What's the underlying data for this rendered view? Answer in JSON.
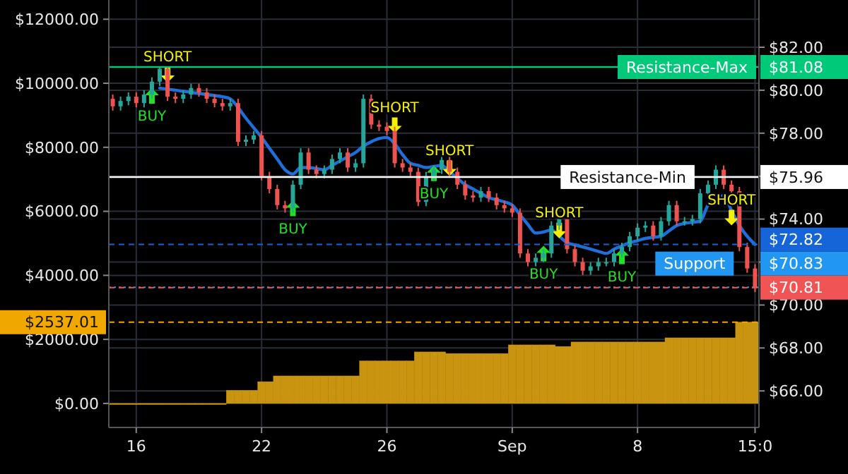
{
  "chart_data": {
    "type": "candlestick",
    "categories": [
      null,
      null,
      null,
      "16",
      null,
      null,
      null,
      null,
      null,
      null,
      null,
      null,
      null,
      null,
      null,
      null,
      null,
      null,
      null,
      "22",
      null,
      null,
      null,
      null,
      null,
      null,
      null,
      null,
      null,
      null,
      null,
      null,
      null,
      null,
      null,
      "26",
      null,
      null,
      null,
      null,
      null,
      null,
      null,
      null,
      null,
      null,
      null,
      null,
      null,
      null,
      null,
      "Sep",
      null,
      null,
      null,
      null,
      null,
      null,
      null,
      null,
      null,
      null,
      null,
      null,
      null,
      null,
      null,
      "8",
      null,
      null,
      null,
      null,
      null,
      null,
      null,
      null,
      null,
      null,
      null,
      null,
      null,
      null,
      "15:0"
    ],
    "ylim": [
      -750,
      12600
    ],
    "yticks": [
      {
        "value": 0,
        "label": "$0.00"
      },
      {
        "value": 2000,
        "label": "$2000.00"
      },
      {
        "value": 4000,
        "label": "$4000.00"
      },
      {
        "value": 6000,
        "label": "$6000.00"
      },
      {
        "value": 8000,
        "label": "$8000.00"
      },
      {
        "value": 10000,
        "label": "$10000.00"
      },
      {
        "value": 12000,
        "label": "$12000.00"
      }
    ],
    "y2lim": [
      64.3,
      84.2
    ],
    "y2ticks": [
      {
        "value": 66,
        "label": "$66.00"
      },
      {
        "value": 68,
        "label": "$68.00"
      },
      {
        "value": 70,
        "label": "$70.00"
      },
      {
        "value": 72,
        "label": null
      },
      {
        "value": 74,
        "label": "$74.00"
      },
      {
        "value": 76,
        "label": null
      },
      {
        "value": 78,
        "label": "$78.00"
      },
      {
        "value": 80,
        "label": "$80.00"
      },
      {
        "value": 82,
        "label": "$82.00"
      }
    ],
    "grid": true,
    "series": [
      {
        "type": "bar",
        "axis": "y",
        "color": "#c99410",
        "values": [
          0,
          0,
          0,
          0,
          0,
          0,
          0,
          0,
          0,
          0,
          0,
          0,
          0,
          0,
          0,
          410,
          410,
          410,
          410,
          680,
          680,
          860,
          860,
          860,
          860,
          860,
          860,
          860,
          860,
          860,
          860,
          860,
          1330,
          1330,
          1330,
          1330,
          1330,
          1330,
          1330,
          1610,
          1610,
          1610,
          1610,
          1560,
          1560,
          1560,
          1560,
          1560,
          1560,
          1560,
          1560,
          1830,
          1830,
          1830,
          1830,
          1830,
          1830,
          1780,
          1780,
          1920,
          1920,
          1920,
          1920,
          1920,
          1920,
          1920,
          1920,
          1920,
          1920,
          1920,
          1920,
          2050,
          2050,
          2050,
          2050,
          2050,
          2050,
          2050,
          2050,
          2050,
          2540,
          2540,
          2540
        ]
      },
      {
        "axis": "y2",
        "ohlc": [
          [
            79.6,
            79.8,
            79.05,
            79.25
          ],
          [
            79.25,
            79.7,
            79.05,
            79.5
          ],
          [
            79.5,
            79.9,
            79.3,
            79.7
          ],
          [
            79.7,
            79.9,
            79.2,
            79.4
          ],
          [
            79.4,
            80.0,
            79.2,
            79.8
          ],
          [
            79.8,
            80.6,
            79.6,
            80.4
          ],
          [
            80.4,
            81.08,
            80.2,
            81.0
          ],
          [
            81.0,
            81.08,
            79.5,
            79.7
          ],
          [
            79.7,
            79.9,
            79.4,
            79.6
          ],
          [
            79.6,
            80.0,
            79.4,
            79.8
          ],
          [
            79.8,
            80.3,
            79.6,
            80.1
          ],
          [
            80.1,
            80.3,
            79.7,
            79.9
          ],
          [
            79.9,
            80.1,
            79.4,
            79.6
          ],
          [
            79.6,
            79.8,
            79.2,
            79.4
          ],
          [
            79.4,
            79.6,
            79.05,
            79.25
          ],
          [
            79.25,
            79.6,
            79.05,
            79.4
          ],
          [
            79.4,
            79.6,
            77.4,
            77.6
          ],
          [
            77.6,
            77.9,
            77.4,
            77.7
          ],
          [
            77.7,
            78.1,
            77.5,
            77.9
          ],
          [
            77.9,
            78.1,
            75.8,
            76.0
          ],
          [
            76.0,
            76.2,
            75.2,
            75.4
          ],
          [
            75.4,
            75.6,
            74.45,
            74.65
          ],
          [
            74.65,
            74.85,
            74.3,
            74.5
          ],
          [
            74.5,
            75.8,
            74.3,
            75.6
          ],
          [
            75.6,
            77.3,
            75.4,
            77.1
          ],
          [
            77.1,
            77.3,
            76.1,
            76.3
          ],
          [
            76.3,
            76.5,
            75.9,
            76.1
          ],
          [
            76.1,
            76.5,
            75.9,
            76.3
          ],
          [
            76.3,
            77.0,
            76.1,
            76.8
          ],
          [
            76.8,
            77.3,
            76.6,
            77.1
          ],
          [
            77.1,
            77.3,
            76.2,
            76.4
          ],
          [
            76.4,
            76.8,
            76.2,
            76.6
          ],
          [
            76.6,
            79.8,
            76.4,
            79.6
          ],
          [
            79.6,
            79.8,
            78.2,
            78.4
          ],
          [
            78.4,
            78.6,
            78.1,
            78.3
          ],
          [
            78.3,
            78.5,
            77.9,
            78.1
          ],
          [
            78.1,
            78.3,
            76.4,
            76.6
          ],
          [
            76.6,
            76.8,
            76.2,
            76.4
          ],
          [
            76.4,
            76.6,
            76.0,
            76.2
          ],
          [
            76.2,
            76.4,
            74.6,
            74.8
          ],
          [
            74.8,
            76.2,
            74.6,
            76.0
          ],
          [
            76.0,
            76.5,
            75.8,
            76.3
          ],
          [
            76.3,
            76.95,
            76.1,
            76.75
          ],
          [
            76.75,
            76.95,
            76.0,
            76.2
          ],
          [
            76.2,
            76.4,
            75.4,
            75.6
          ],
          [
            75.6,
            75.8,
            74.9,
            75.1
          ],
          [
            75.1,
            75.3,
            74.8,
            75.0
          ],
          [
            75.0,
            75.5,
            74.8,
            75.3
          ],
          [
            75.3,
            75.5,
            74.8,
            75.0
          ],
          [
            75.0,
            75.2,
            74.45,
            74.65
          ],
          [
            74.65,
            74.85,
            74.3,
            74.5
          ],
          [
            74.5,
            74.7,
            74.1,
            74.3
          ],
          [
            74.3,
            74.5,
            72.2,
            72.4
          ],
          [
            72.4,
            72.6,
            71.8,
            72.0
          ],
          [
            72.0,
            72.4,
            71.8,
            72.2
          ],
          [
            72.2,
            72.6,
            72.0,
            72.4
          ],
          [
            72.4,
            73.9,
            72.2,
            73.7
          ],
          [
            73.7,
            74.2,
            73.5,
            74.0
          ],
          [
            74.0,
            74.2,
            72.4,
            72.6
          ],
          [
            72.6,
            72.8,
            71.8,
            72.0
          ],
          [
            72.0,
            72.2,
            71.4,
            71.6
          ],
          [
            71.6,
            72.0,
            71.4,
            71.8
          ],
          [
            71.8,
            72.2,
            71.6,
            72.0
          ],
          [
            72.0,
            72.2,
            71.8,
            72.0
          ],
          [
            72.0,
            72.6,
            71.8,
            72.4
          ],
          [
            72.4,
            72.9,
            72.2,
            72.7
          ],
          [
            72.7,
            73.4,
            72.5,
            73.2
          ],
          [
            73.2,
            73.8,
            73.0,
            73.6
          ],
          [
            73.6,
            73.9,
            73.4,
            73.7
          ],
          [
            73.7,
            73.9,
            73.0,
            73.2
          ],
          [
            73.2,
            74.1,
            73.0,
            73.9
          ],
          [
            73.9,
            74.85,
            73.7,
            74.65
          ],
          [
            74.65,
            74.85,
            73.7,
            73.9
          ],
          [
            73.9,
            74.1,
            73.7,
            73.9
          ],
          [
            73.9,
            74.2,
            73.7,
            74.0
          ],
          [
            74.0,
            75.4,
            73.8,
            75.2
          ],
          [
            75.2,
            75.8,
            75.0,
            75.6
          ],
          [
            75.6,
            76.5,
            75.4,
            76.3
          ],
          [
            76.3,
            76.5,
            75.4,
            75.6
          ],
          [
            75.6,
            75.8,
            75.1,
            75.3
          ],
          [
            75.3,
            75.5,
            72.5,
            72.7
          ],
          [
            72.7,
            72.9,
            71.5,
            71.7
          ],
          [
            71.7,
            71.9,
            70.6,
            70.81
          ]
        ]
      },
      {
        "type": "line",
        "axis": "y2",
        "color": "#1e6fd9",
        "values": [
          null,
          null,
          null,
          null,
          null,
          null,
          80.1,
          80.05,
          80.0,
          79.95,
          79.9,
          79.85,
          79.8,
          79.75,
          79.7,
          79.6,
          79.2,
          78.7,
          78.25,
          77.8,
          77.3,
          76.8,
          76.3,
          76.1,
          76.4,
          76.4,
          76.35,
          76.3,
          76.5,
          76.7,
          76.9,
          77.1,
          77.4,
          77.6,
          77.75,
          77.8,
          77.5,
          77.0,
          76.6,
          76.5,
          76.4,
          76.45,
          76.5,
          76.2,
          75.9,
          75.6,
          75.4,
          75.2,
          75.0,
          74.9,
          74.8,
          74.65,
          74.2,
          73.75,
          73.35,
          73.4,
          73.5,
          73.2,
          72.9,
          72.8,
          72.7,
          72.6,
          72.5,
          72.4,
          72.6,
          72.75,
          72.9,
          73.0,
          73.1,
          73.15,
          73.2,
          73.45,
          73.7,
          73.8,
          73.85,
          73.9,
          74.65,
          74.9,
          75.1,
          74.4,
          73.7,
          73.2,
          72.82
        ]
      },
      {
        "type": "scatter",
        "axis": "y2",
        "color": "#22e022",
        "marker": "triangle",
        "values": [
          null,
          null,
          null,
          null,
          null,
          79.7,
          null,
          null,
          null,
          null,
          null,
          null,
          null,
          null,
          null,
          null,
          null,
          null,
          null,
          null,
          null,
          null,
          null,
          74.46,
          null,
          null,
          null,
          null,
          null,
          null,
          null,
          null,
          null,
          null,
          null,
          null,
          null,
          null,
          null,
          null,
          null,
          76.1,
          null,
          null,
          null,
          null,
          null,
          null,
          null,
          null,
          null,
          null,
          null,
          null,
          null,
          72.36,
          null,
          null,
          null,
          null,
          null,
          null,
          null,
          null,
          null,
          72.23,
          null,
          null,
          null,
          null,
          null,
          null,
          null,
          null,
          null,
          null,
          null,
          null,
          null,
          null,
          null,
          null,
          null
        ],
        "value_labels": [
          null,
          null,
          null,
          null,
          null,
          "BUY",
          null,
          null,
          null,
          null,
          null,
          null,
          null,
          null,
          null,
          null,
          null,
          null,
          null,
          null,
          null,
          null,
          null,
          "BUY",
          null,
          null,
          null,
          null,
          null,
          null,
          null,
          null,
          null,
          null,
          null,
          null,
          null,
          null,
          null,
          null,
          null,
          "BUY",
          null,
          null,
          null,
          null,
          null,
          null,
          null,
          null,
          null,
          null,
          null,
          null,
          null,
          "BUY",
          null,
          null,
          null,
          null,
          null,
          null,
          null,
          null,
          null,
          "BUY",
          null,
          null,
          null,
          null,
          null,
          null,
          null,
          null,
          null,
          null,
          null,
          null,
          null,
          null,
          null,
          null,
          null
        ]
      },
      {
        "type": "scatter",
        "axis": "y2",
        "color": "#f5f000",
        "marker": "triangle",
        "values": [
          null,
          null,
          null,
          null,
          null,
          null,
          null,
          80.75,
          null,
          null,
          null,
          null,
          null,
          null,
          null,
          null,
          null,
          null,
          null,
          null,
          null,
          null,
          null,
          null,
          null,
          null,
          null,
          null,
          null,
          null,
          null,
          null,
          null,
          null,
          null,
          null,
          78.4,
          null,
          null,
          null,
          null,
          null,
          null,
          76.4,
          null,
          null,
          null,
          null,
          null,
          null,
          null,
          null,
          null,
          null,
          null,
          null,
          null,
          73.5,
          null,
          null,
          null,
          null,
          null,
          null,
          null,
          null,
          null,
          null,
          null,
          null,
          null,
          null,
          null,
          null,
          null,
          null,
          null,
          null,
          null,
          74.1,
          null,
          null,
          null
        ],
        "value_labels": [
          null,
          null,
          null,
          null,
          null,
          null,
          null,
          "SHORT",
          null,
          null,
          null,
          null,
          null,
          null,
          null,
          null,
          null,
          null,
          null,
          null,
          null,
          null,
          null,
          null,
          null,
          null,
          null,
          null,
          null,
          null,
          null,
          null,
          null,
          null,
          null,
          null,
          "SHORT",
          null,
          null,
          null,
          null,
          null,
          null,
          "SHORT",
          null,
          null,
          null,
          null,
          null,
          null,
          null,
          null,
          null,
          null,
          null,
          null,
          null,
          "SHORT",
          null,
          null,
          null,
          null,
          null,
          null,
          null,
          null,
          null,
          null,
          null,
          null,
          null,
          null,
          null,
          null,
          null,
          null,
          null,
          null,
          null,
          "SHORT",
          null,
          null,
          null
        ]
      }
    ],
    "ref_lines": [
      {
        "axis": "y2",
        "value": 81.08,
        "label": "Resistance-Max",
        "color": "#00c97a",
        "line_style": "solid"
      },
      {
        "axis": "y2",
        "value": 75.96,
        "label": "Resistance-Min",
        "color": "#ffffff",
        "line_style": "solid"
      },
      {
        "axis": "y2",
        "value": 72.82,
        "color": "#1565d8",
        "line_style": "dashed"
      },
      {
        "axis": "y2",
        "value": 70.83,
        "label": "Support",
        "color": "#2196f3",
        "line_style": "dotted"
      },
      {
        "axis": "y2",
        "value": 70.81,
        "color": "#f05454",
        "line_style": "dashed"
      },
      {
        "axis": "y",
        "value": 2537.01,
        "color": "#f0a800",
        "line_style": "dashed"
      }
    ],
    "annotations": [
      "$81.08",
      "$75.96",
      "$72.82",
      "$70.83",
      "$70.81",
      "$2537.01"
    ]
  }
}
